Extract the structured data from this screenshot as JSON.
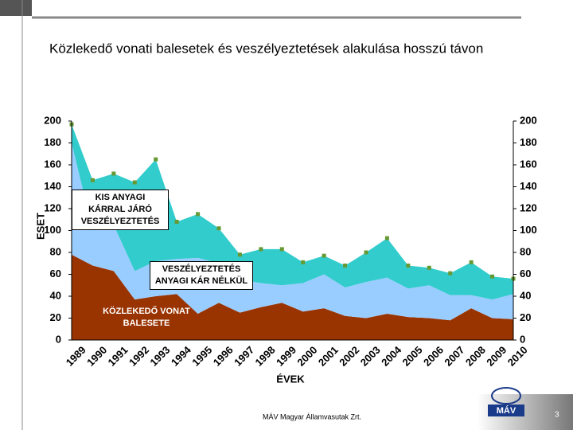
{
  "header": {
    "title": "Közlekedő vonati balesetek és veszélyeztetések alakulása hosszú távon"
  },
  "chart_data": {
    "type": "stacked-area",
    "y_label": "ESET",
    "x_label": "ÉVEK",
    "categories": [
      "1989",
      "1990",
      "1991",
      "1992",
      "1993",
      "1994",
      "1995",
      "1996",
      "1997",
      "1998",
      "1999",
      "2000",
      "2001",
      "2002",
      "2003",
      "2004",
      "2005",
      "2006",
      "2007",
      "2008",
      "2009",
      "2010"
    ],
    "series": [
      {
        "name": "KÖZLEKEDŐ VONAT BALESETE",
        "color": "#993300",
        "values": [
          78,
          68,
          63,
          37,
          40,
          42,
          24,
          34,
          25,
          30,
          34,
          26,
          29,
          22,
          20,
          24,
          21,
          20,
          18,
          29,
          20,
          19
        ]
      },
      {
        "name": "VESZÉLYEZTETÉS ANYAGI KÁR NÉLKÜL",
        "color": "#99ccff",
        "values": [
          102,
          32,
          42,
          26,
          32,
          32,
          51,
          36,
          30,
          22,
          16,
          26,
          31,
          26,
          33,
          33,
          26,
          30,
          23,
          12,
          17,
          23
        ]
      },
      {
        "name": "KIS ANYAGI KÁRRAL JÁRÓ VESZÉLYEZTETÉS",
        "color": "#33cccc",
        "values": [
          17,
          46,
          47,
          81,
          93,
          34,
          40,
          32,
          23,
          31,
          33,
          19,
          17,
          20,
          27,
          36,
          21,
          16,
          20,
          30,
          21,
          14
        ]
      }
    ],
    "marker_color": "#669933",
    "ylim": [
      0,
      200
    ],
    "yticks": [
      0,
      20,
      40,
      60,
      80,
      100,
      120,
      140,
      160,
      180,
      200
    ],
    "y2lim": [
      0,
      200
    ],
    "y2ticks": [
      0,
      20,
      40,
      60,
      80,
      100,
      120,
      140,
      160,
      180,
      200
    ]
  },
  "footer": {
    "company": "MÁV Magyar Államvasutak Zrt.",
    "page": "3",
    "logo": "MÁV"
  }
}
